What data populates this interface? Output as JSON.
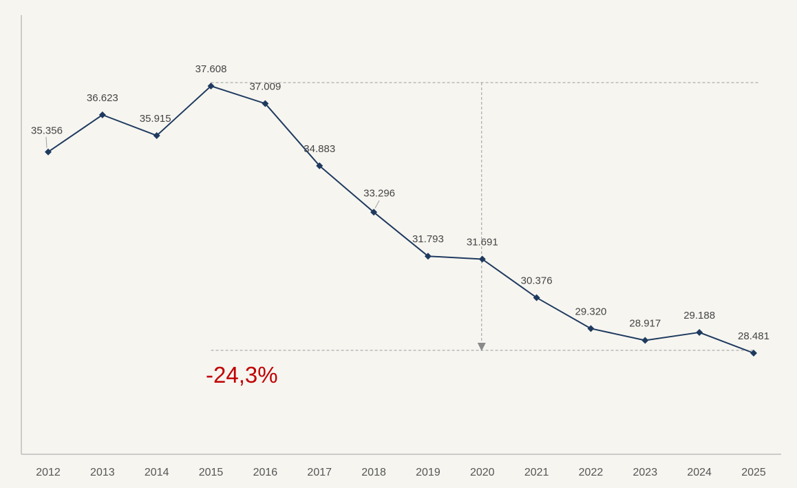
{
  "chart_data": {
    "type": "line",
    "categories": [
      "2012",
      "2013",
      "2014",
      "2015",
      "2016",
      "2017",
      "2018",
      "2019",
      "2020",
      "2021",
      "2022",
      "2023",
      "2024",
      "2025"
    ],
    "values": [
      35356,
      36623,
      35915,
      37608,
      37009,
      34883,
      33296,
      31793,
      31691,
      30376,
      29320,
      28917,
      29188,
      28481
    ],
    "data_labels": [
      "35.356",
      "36.623",
      "35.915",
      "37.608",
      "37.009",
      "34.883",
      "33.296",
      "31.793",
      "31.691",
      "30.376",
      "29.320",
      "28.917",
      "29.188",
      "28.481"
    ],
    "title": "",
    "xlabel": "",
    "ylabel": "",
    "ylim": [
      24000,
      39500
    ],
    "grid": false,
    "legend": "none",
    "annotation": {
      "text": "-24,3%",
      "from_category": "2015",
      "to_category": "2025",
      "arrow_at_category": "2020"
    },
    "colors": {
      "line": "#1f3a5f",
      "marker": "#1f3a5f",
      "annotation_text": "#c00000",
      "reference_lines": "#9a9a9a",
      "axis": "#bdbdbd",
      "background": "#f6f5f0"
    }
  }
}
